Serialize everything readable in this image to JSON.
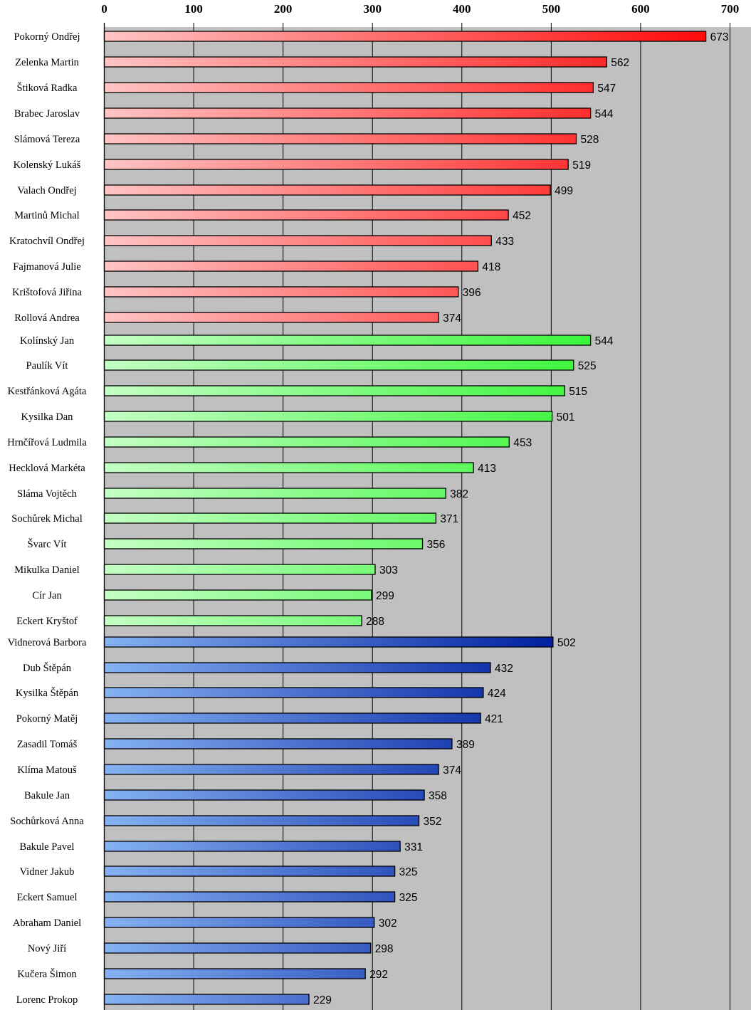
{
  "chart_data": {
    "type": "bar",
    "orientation": "horizontal",
    "title": "",
    "xlabel": "",
    "ylabel": "",
    "xlim": [
      0,
      700
    ],
    "x_ticks": [
      0,
      100,
      200,
      300,
      400,
      500,
      600,
      700
    ],
    "x_tick_labels": [
      "0",
      "100",
      "200",
      "300",
      "400",
      "500",
      "600",
      "700"
    ],
    "axis_position": "top",
    "grid": true,
    "plot_background": "#c0c0c0",
    "groups": [
      {
        "name": "red",
        "color_start": "#ffc4c4",
        "color_end": "#ff0a0a"
      },
      {
        "name": "green",
        "color_start": "#c4ffc4",
        "color_end": "#3cf53c"
      },
      {
        "name": "blue",
        "color_start": "#85b2f2",
        "color_end": "#0020a0"
      }
    ],
    "categories": [
      "Pokorný Ondřej",
      "Zelenka Martin",
      "Štiková Radka",
      "Brabec Jaroslav",
      "Slámová Tereza",
      "Kolenský Lukáš",
      "Valach Ondřej",
      "Martinů Michal",
      "Kratochvíl Ondřej",
      "Fajmanová Julie",
      "Krištofová Jiřina",
      "Rollová Andrea",
      "Kolínský Jan",
      "Paulík Vít",
      "Kestřánková Agáta",
      "Kysilka Dan",
      "Hrnčířová Ludmila",
      "Hecklová Markéta",
      "Sláma Vojtěch",
      "Sochůrek Michal",
      "Švarc Vít",
      "Mikulka Daniel",
      "Cír Jan",
      "Eckert Kryštof",
      "Vidnerová Barbora",
      "Dub Štěpán",
      "Kysilka Štěpán",
      "Pokorný Matěj",
      "Zasadil Tomáš",
      "Klíma Matouš",
      "Bakule Jan",
      "Sochůrková Anna",
      "Bakule Pavel",
      "Vidner Jakub",
      "Eckert Samuel",
      "Abraham Daniel",
      "Nový Jiří",
      "Kučera Šimon",
      "Lorenc Prokop"
    ],
    "values": [
      673,
      562,
      547,
      544,
      528,
      519,
      499,
      452,
      433,
      418,
      396,
      374,
      544,
      525,
      515,
      501,
      453,
      413,
      382,
      371,
      356,
      303,
      299,
      288,
      502,
      432,
      424,
      421,
      389,
      374,
      358,
      352,
      331,
      325,
      325,
      302,
      298,
      292,
      229
    ],
    "group_index": [
      0,
      0,
      0,
      0,
      0,
      0,
      0,
      0,
      0,
      0,
      0,
      0,
      1,
      1,
      1,
      1,
      1,
      1,
      1,
      1,
      1,
      1,
      1,
      1,
      2,
      2,
      2,
      2,
      2,
      2,
      2,
      2,
      2,
      2,
      2,
      2,
      2,
      2,
      2
    ]
  }
}
